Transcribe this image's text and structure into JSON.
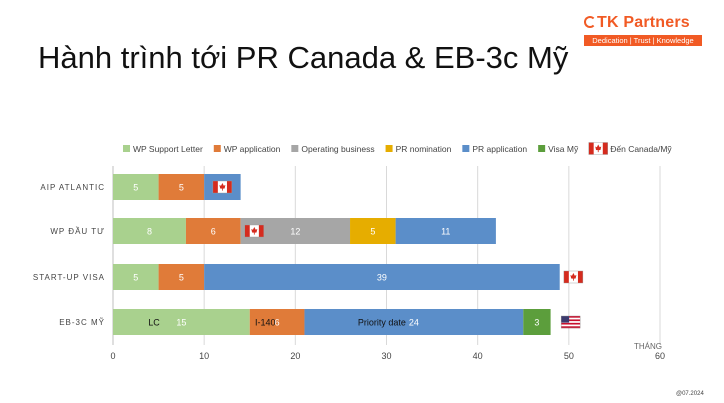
{
  "slide": {
    "title": "Hành trình tới PR Canada & EB-3c Mỹ",
    "logo_name": "TK Partners",
    "logo_tagline": "Dedication | Trust | Knowledge",
    "footer": "@07.2024"
  },
  "colors": {
    "brand": "#f15a24",
    "WP Support Letter": "#a9d18e",
    "WP application": "#e07b39",
    "Operating business": "#a6a6a6",
    "PR nomination": "#e6ad00",
    "PR application": "#5b8ec9",
    "Visa Mỹ": "#5c9e3c"
  },
  "chart_data": {
    "type": "bar",
    "orientation": "horizontal",
    "stacked": true,
    "categories": [
      "AIP ATLANTIC",
      "WP ĐẦU TƯ",
      "START-UP VISA",
      "EB-3C MỸ"
    ],
    "series": [
      {
        "name": "WP Support Letter",
        "values": [
          5,
          8,
          5,
          15
        ]
      },
      {
        "name": "WP application",
        "values": [
          5,
          6,
          5,
          6
        ]
      },
      {
        "name": "Operating business",
        "values": [
          0,
          12,
          0,
          0
        ]
      },
      {
        "name": "PR nomination",
        "values": [
          0,
          5,
          0,
          0
        ]
      },
      {
        "name": "PR application",
        "values": [
          4,
          11,
          39,
          24
        ]
      },
      {
        "name": "Visa Mỹ",
        "values": [
          0,
          0,
          0,
          3
        ]
      }
    ],
    "legend_extra": "Đến Canada/Mỹ",
    "flags": [
      {
        "category": "AIP ATLANTIC",
        "at": 12,
        "flag": "canada-flag"
      },
      {
        "category": "WP ĐẦU TƯ",
        "at": 15.5,
        "flag": "canada-flag"
      },
      {
        "category": "START-UP VISA",
        "at": 50.5,
        "flag": "canada-flag"
      },
      {
        "category": "EB-3C MỸ",
        "at": 50.2,
        "flag": "usa-flag"
      }
    ],
    "annotations": [
      {
        "category": "EB-3C MỸ",
        "at": 4.5,
        "text": "LC"
      },
      {
        "category": "EB-3C MỸ",
        "at": 16.7,
        "text": "I-140"
      },
      {
        "category": "EB-3C MỸ",
        "at": 29.5,
        "text": "Priority date"
      }
    ],
    "xlabel": "THÁNG",
    "xlim": [
      0,
      60
    ],
    "xticks": [
      0,
      10,
      20,
      30,
      40,
      50,
      60
    ],
    "grid": true,
    "legend_position": "top"
  }
}
